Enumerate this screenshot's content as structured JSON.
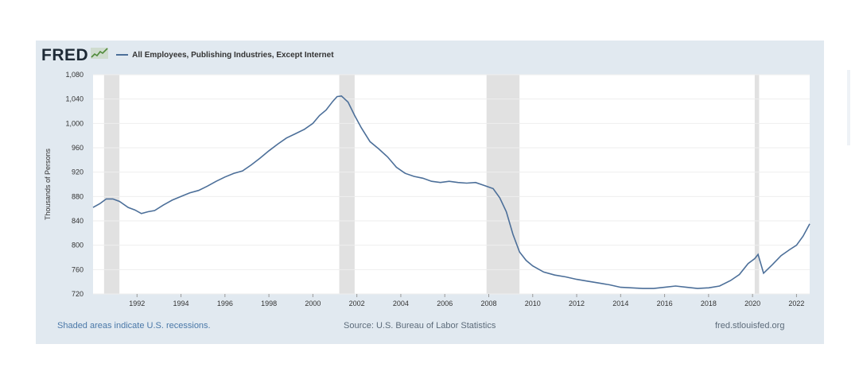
{
  "header": {
    "logo": "FRED",
    "logo_icon": "fred-sparkline-icon",
    "series_title": "All Employees, Publishing Industries, Except Internet"
  },
  "footer": {
    "recession_note": "Shaded areas indicate U.S. recessions.",
    "source": "Source: U.S. Bureau of Labor Statistics",
    "site": "fred.stlouisfed.org"
  },
  "colors": {
    "line": "#4c6f99",
    "recession": "#e1e1e1",
    "panel": "#e1e9f0",
    "grid": "#eeeeee"
  },
  "chart_data": {
    "type": "line",
    "title": "All Employees, Publishing Industries, Except Internet",
    "xlabel": "",
    "ylabel": "Thousands of Persons",
    "xlim": [
      1990.0,
      2022.6
    ],
    "ylim": [
      720,
      1080
    ],
    "y_ticks": [
      720,
      760,
      800,
      840,
      880,
      920,
      960,
      1000,
      1040,
      1080
    ],
    "y_tick_labels": [
      "720",
      "760",
      "800",
      "840",
      "880",
      "920",
      "960",
      "1,000",
      "1,040",
      "1,080"
    ],
    "x_ticks": [
      1992,
      1994,
      1996,
      1998,
      2000,
      2002,
      2004,
      2006,
      2008,
      2010,
      2012,
      2014,
      2016,
      2018,
      2020,
      2022
    ],
    "x_tick_labels": [
      "1992",
      "1994",
      "1996",
      "1998",
      "2000",
      "2002",
      "2004",
      "2006",
      "2008",
      "2010",
      "2012",
      "2014",
      "2016",
      "2018",
      "2020",
      "2022"
    ],
    "grid": "horizontal",
    "legend": "top-left",
    "recessions": [
      [
        1990.5,
        1991.2
      ],
      [
        2001.2,
        2001.9
      ],
      [
        2007.9,
        2009.4
      ],
      [
        2020.1,
        2020.3
      ]
    ],
    "series": [
      {
        "x": [
          1990.0,
          1990.3,
          1990.6,
          1990.9,
          1991.2,
          1991.6,
          1991.9,
          1992.2,
          1992.5,
          1992.8,
          1993.2,
          1993.6,
          1994.0,
          1994.4,
          1994.8,
          1995.2,
          1995.6,
          1996.0,
          1996.4,
          1996.8,
          1997.2,
          1997.6,
          1998.0,
          1998.4,
          1998.8,
          1999.2,
          1999.6,
          2000.0,
          2000.3,
          2000.6,
          2000.9,
          2001.1,
          2001.3,
          2001.6,
          2001.9,
          2002.2,
          2002.6,
          2003.0,
          2003.4,
          2003.8,
          2004.2,
          2004.6,
          2005.0,
          2005.4,
          2005.8,
          2006.2,
          2006.6,
          2007.0,
          2007.4,
          2007.8,
          2008.2,
          2008.5,
          2008.8,
          2009.1,
          2009.4,
          2009.7,
          2010.0,
          2010.5,
          2011.0,
          2011.5,
          2012.0,
          2012.5,
          2013.0,
          2013.5,
          2014.0,
          2014.5,
          2015.0,
          2015.5,
          2016.0,
          2016.5,
          2017.0,
          2017.5,
          2018.0,
          2018.5,
          2019.0,
          2019.4,
          2019.8,
          2020.1,
          2020.25,
          2020.5,
          2020.9,
          2021.3,
          2021.7,
          2022.0,
          2022.3,
          2022.6
        ],
        "values": [
          862,
          868,
          876,
          876,
          872,
          862,
          858,
          852,
          855,
          857,
          866,
          874,
          880,
          886,
          890,
          897,
          905,
          912,
          918,
          922,
          932,
          943,
          955,
          966,
          976,
          983,
          990,
          1000,
          1013,
          1022,
          1036,
          1044,
          1045,
          1035,
          1013,
          993,
          970,
          958,
          945,
          928,
          918,
          913,
          910,
          905,
          903,
          905,
          903,
          902,
          903,
          898,
          893,
          878,
          855,
          818,
          789,
          775,
          766,
          756,
          751,
          748,
          744,
          741,
          738,
          735,
          731,
          730,
          729,
          729,
          731,
          733,
          731,
          729,
          730,
          733,
          742,
          752,
          770,
          778,
          785,
          754,
          768,
          783,
          793,
          800,
          815,
          835
        ]
      }
    ]
  }
}
